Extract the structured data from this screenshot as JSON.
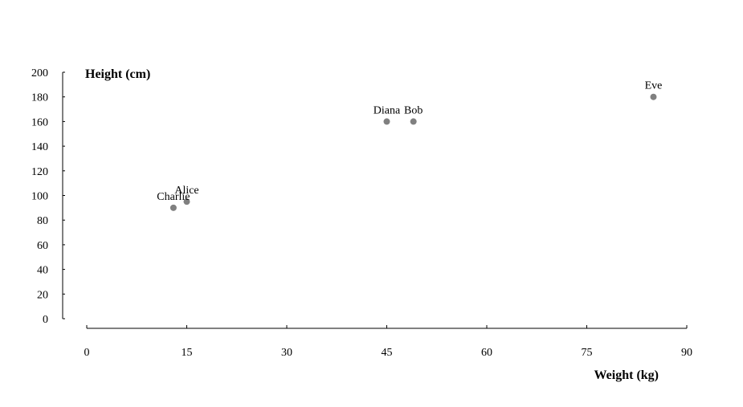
{
  "chart_data": {
    "type": "scatter",
    "title": "",
    "xlabel": "Weight (kg)",
    "ylabel": "Height (cm)",
    "xlim": [
      0,
      90
    ],
    "ylim": [
      0,
      200
    ],
    "xticks": [
      0,
      15,
      30,
      45,
      60,
      75,
      90
    ],
    "yticks": [
      0,
      20,
      40,
      60,
      80,
      100,
      120,
      140,
      160,
      180,
      200
    ],
    "grid": false,
    "legend": "none",
    "point_color": "#808080",
    "points": [
      {
        "label": "Alice",
        "x": 15,
        "y": 95
      },
      {
        "label": "Bob",
        "x": 49,
        "y": 160
      },
      {
        "label": "Charlie",
        "x": 13,
        "y": 90
      },
      {
        "label": "Diana",
        "x": 45,
        "y": 160
      },
      {
        "label": "Eve",
        "x": 85,
        "y": 180
      }
    ]
  }
}
